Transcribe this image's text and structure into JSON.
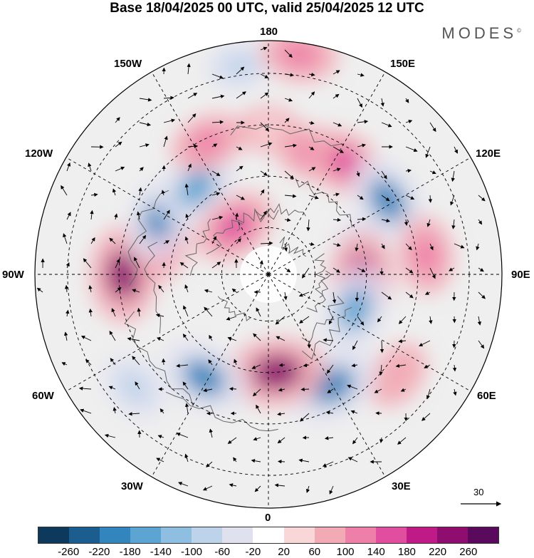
{
  "title": "Base 18/04/2025 00 UTC, valid 25/04/2025 12 UTC",
  "brand": "MODES",
  "brand_mark": "©",
  "longitude_labels": {
    "top": "180",
    "top_left": "150W",
    "top_right": "150E",
    "upper_left": "120W",
    "upper_right": "120E",
    "left": "90W",
    "right": "90E",
    "lower_left": "60W",
    "lower_right": "60E",
    "bottom_left": "30W",
    "bottom_right": "30E",
    "bottom": "0"
  },
  "vector_scale": {
    "label": "30"
  },
  "colorbar": {
    "colors": [
      "#0d3a5c",
      "#1b5d8f",
      "#3385bd",
      "#5ca4d2",
      "#8fbfe0",
      "#bcd3ea",
      "#e0e1ef",
      "#ffffff",
      "#f9d7d9",
      "#f2abb5",
      "#ee7fa9",
      "#e24e9f",
      "#c01a86",
      "#8e0d6f",
      "#5a0a5c"
    ],
    "ticks": [
      "-260",
      "-220",
      "-180",
      "-140",
      "-100",
      "-60",
      "-20",
      "20",
      "60",
      "100",
      "140",
      "180",
      "220",
      "260"
    ]
  },
  "colors": {
    "background": "#efefef",
    "coast": "#666666",
    "grid": "#000000"
  },
  "anomalies": [
    {
      "dir": 180,
      "r": 0.62,
      "value": 40
    },
    {
      "dir": 160,
      "r": 0.55,
      "value": 110
    },
    {
      "dir": 145,
      "r": 0.58,
      "value": 150
    },
    {
      "dir": 122,
      "r": 0.6,
      "value": -200
    },
    {
      "dir": 100,
      "r": 0.4,
      "value": -110
    },
    {
      "dir": 97,
      "r": 0.68,
      "value": 120
    },
    {
      "dir": 88,
      "r": 0.4,
      "value": 210
    },
    {
      "dir": 68,
      "r": 0.4,
      "value": -180
    },
    {
      "dir": 52,
      "r": 0.7,
      "value": 80
    },
    {
      "dir": 30,
      "r": 0.55,
      "value": -210
    },
    {
      "dir": 5,
      "r": 0.42,
      "value": 240
    },
    {
      "dir": -32,
      "r": 0.52,
      "value": -200
    },
    {
      "dir": -50,
      "r": 0.75,
      "value": -90
    },
    {
      "dir": -90,
      "r": 0.62,
      "value": 230
    },
    {
      "dir": -108,
      "r": 0.48,
      "value": 170
    },
    {
      "dir": -118,
      "r": 0.52,
      "value": -190
    },
    {
      "dir": -140,
      "r": 0.48,
      "value": -170
    },
    {
      "dir": -145,
      "r": 0.25,
      "value": 160
    },
    {
      "dir": -155,
      "r": 0.62,
      "value": 110
    },
    {
      "dir": -172,
      "r": 0.9,
      "value": -70
    },
    {
      "dir": 172,
      "r": 0.95,
      "value": 120
    }
  ]
}
